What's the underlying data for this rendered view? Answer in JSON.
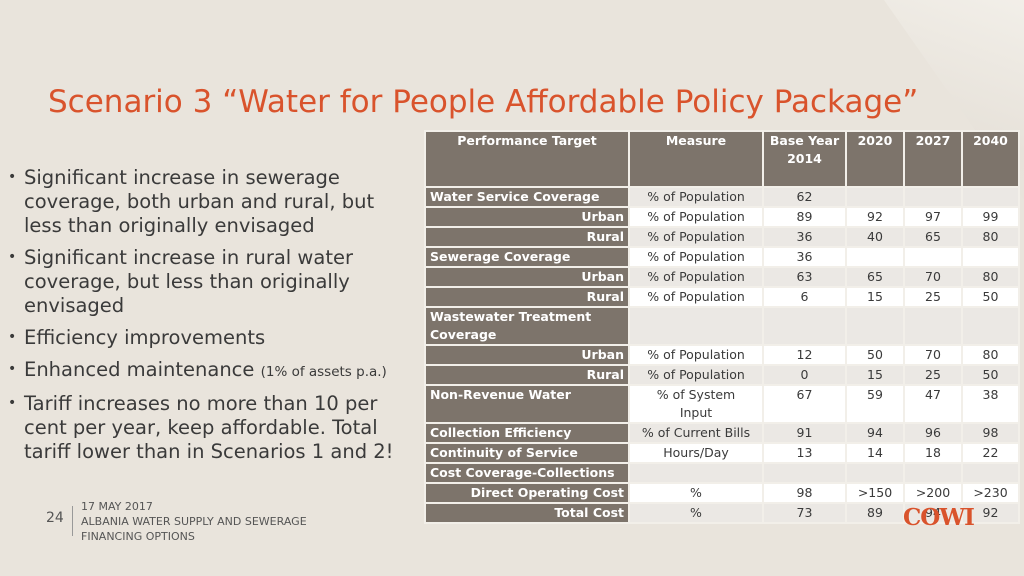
{
  "title": "Scenario 3  “Water for People Affordable Policy Package”",
  "bullets": [
    {
      "text": "Significant increase in sewerage coverage, both urban and rural, but less than originally envisaged",
      "note": ""
    },
    {
      "text": "Significant increase in rural water coverage, but less than originally envisaged",
      "note": ""
    },
    {
      "text": "Efficiency improvements",
      "note": ""
    },
    {
      "text": "Enhanced maintenance ",
      "note": "(1% of assets p.a.)"
    },
    {
      "text": "Tariff increases no more than 10 per cent per year, keep affordable. Total tariff lower than in Scenarios 1 and 2!",
      "note": ""
    }
  ],
  "table": {
    "headers": [
      "Performance Target",
      "Measure",
      "Base Year 2014",
      "2020",
      "2027",
      "2040"
    ],
    "rows": [
      [
        "Water Service Coverage",
        "% of Population",
        "62",
        "",
        "",
        ""
      ],
      [
        "Urban",
        "% of Population",
        "89",
        "92",
        "97",
        "99"
      ],
      [
        "Rural",
        "% of Population",
        "36",
        "40",
        "65",
        "80"
      ],
      [
        "Sewerage Coverage",
        "% of Population",
        "36",
        "",
        "",
        ""
      ],
      [
        "Urban",
        "% of Population",
        "63",
        "65",
        "70",
        "80"
      ],
      [
        "Rural",
        "% of Population",
        "6",
        "15",
        "25",
        "50"
      ],
      [
        "Wastewater Treatment Coverage",
        "",
        "",
        "",
        "",
        ""
      ],
      [
        "Urban",
        "% of Population",
        "12",
        "50",
        "70",
        "80"
      ],
      [
        "Rural",
        "% of Population",
        "0",
        "15",
        "25",
        "50"
      ],
      [
        "Non-Revenue Water",
        "% of System Input",
        "67",
        "59",
        "47",
        "38"
      ],
      [
        "Collection Efficiency",
        "% of Current Bills",
        "91",
        "94",
        "96",
        "98"
      ],
      [
        "Continuity of Service",
        "Hours/Day",
        "13",
        "14",
        "18",
        "22"
      ],
      [
        "Cost Coverage-Collections",
        "",
        "",
        "",
        "",
        ""
      ],
      [
        "Direct Operating Cost",
        "%",
        "98",
        ">150",
        ">200",
        ">230"
      ],
      [
        "Total Cost",
        "%",
        "73",
        "89",
        "94",
        "92"
      ]
    ]
  },
  "footer": {
    "page_number": "24",
    "date": "17 MAY 2017",
    "line1": "ALBANIA WATER SUPPLY AND SEWERAGE",
    "line2": "FINANCING OPTIONS"
  },
  "logo": "COWI",
  "colors": {
    "accent": "#d9532c",
    "header_bg": "#7d746b",
    "page_bg": "#e9e4dc"
  }
}
